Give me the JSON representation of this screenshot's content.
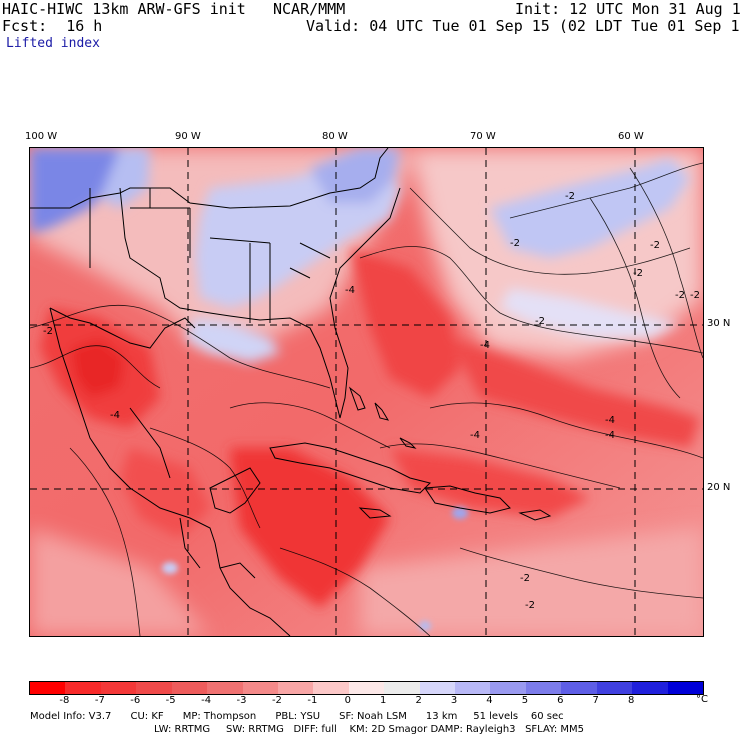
{
  "header": {
    "model_title": "HAIC-HIWC 13km ARW-GFS init",
    "org": "NCAR/MMM",
    "init": "Init: 12 UTC Mon 31 Aug 15",
    "fcst_label": "Fcst:",
    "fcst_value": "16 h",
    "valid": "Valid: 04 UTC Tue 01 Sep 15 (02 LDT Tue 01 Sep 15)",
    "field": "Lifted index"
  },
  "map": {
    "longitude_labels": [
      "100 W",
      "90 W",
      "80 W",
      "70 W",
      "60 W"
    ],
    "latitude_labels": [
      "30 N",
      "20 N"
    ],
    "contour_labels": [
      "-2",
      "-2",
      "-2",
      "-2",
      "-2",
      "-2",
      "-2",
      "-4",
      "-4",
      "-4",
      "-4",
      "-4",
      "-4",
      "-2",
      "-2",
      "-2"
    ]
  },
  "colorbar": {
    "ticks": [
      "-8",
      "-7",
      "-6",
      "-5",
      "-4",
      "-3",
      "-2",
      "-1",
      "0",
      "1",
      "2",
      "3",
      "4",
      "5",
      "6",
      "7",
      "8"
    ],
    "unit": "°C",
    "colors": [
      "#ff0000",
      "#f82a2a",
      "#f43838",
      "#f04a4a",
      "#ee5c5c",
      "#f07272",
      "#f48a8a",
      "#f8a6a6",
      "#fcc8c8",
      "#fce8e8",
      "#ecececfc",
      "#d6d6fa",
      "#b8b8f6",
      "#9a9af0",
      "#7c7cea",
      "#5e5ee6",
      "#4040e0",
      "#2020dc",
      "#0000d8"
    ]
  },
  "footer": {
    "line1": "Model Info: V3.7      CU: KF      MP: Thompson      PBL: YSU      SF: Noah LSM      13 km     51 levels    60 sec",
    "line2": "LW: RRTMG     SW: RRTMG   DIFF: full    KM: 2D Smagor DAMP: Rayleigh3   SFLAY: MM5"
  }
}
